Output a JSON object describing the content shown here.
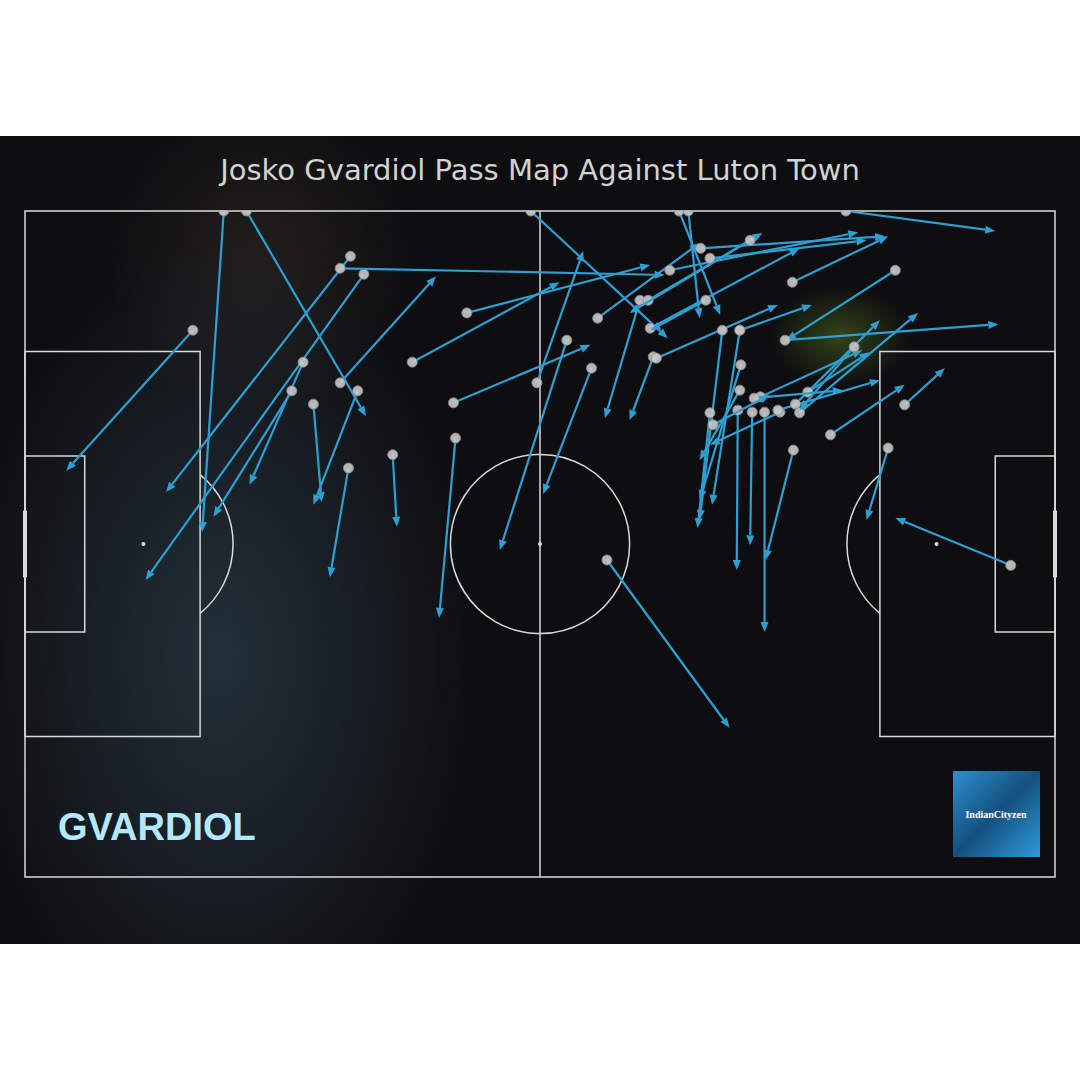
{
  "chart_data": {
    "type": "pass_map",
    "title": "Josko Gvardiol Pass Map Against Luton Town",
    "xlim": [
      0,
      100
    ],
    "ylim": [
      0,
      100
    ],
    "tick_labels": false,
    "grid": false,
    "color": "#2d9fd3",
    "marker": "circle",
    "annotations": [
      {
        "text": "GVARDIOL"
      },
      {
        "text": "IndianCityzen"
      }
    ],
    "passes": [
      {
        "x": 16.3,
        "y": 82.1,
        "end_x": 4.0,
        "end_y": 61.0
      },
      {
        "x": 19.3,
        "y": 100,
        "end_x": 17.2,
        "end_y": 51.8
      },
      {
        "x": 21.5,
        "y": 100,
        "end_x": 33.1,
        "end_y": 69.2
      },
      {
        "x": 31.6,
        "y": 93.2,
        "end_x": 13.7,
        "end_y": 57.8
      },
      {
        "x": 32.9,
        "y": 90.5,
        "end_x": 11.7,
        "end_y": 44.6
      },
      {
        "x": 30.6,
        "y": 91.4,
        "end_x": 62.1,
        "end_y": 90.4
      },
      {
        "x": 27.0,
        "y": 77.3,
        "end_x": 21.8,
        "end_y": 58.9
      },
      {
        "x": 25.9,
        "y": 73.0,
        "end_x": 18.3,
        "end_y": 54.1
      },
      {
        "x": 28.0,
        "y": 71.0,
        "end_x": 28.8,
        "end_y": 56.3
      },
      {
        "x": 30.6,
        "y": 74.2,
        "end_x": 39.9,
        "end_y": 90.2
      },
      {
        "x": 32.3,
        "y": 73.0,
        "end_x": 28.0,
        "end_y": 55.9
      },
      {
        "x": 31.4,
        "y": 61.4,
        "end_x": 29.6,
        "end_y": 45.0
      },
      {
        "x": 35.7,
        "y": 63.4,
        "end_x": 36.1,
        "end_y": 52.6
      },
      {
        "x": 37.6,
        "y": 77.3,
        "end_x": 51.9,
        "end_y": 89.3
      },
      {
        "x": 41.8,
        "y": 65.9,
        "end_x": 40.2,
        "end_y": 38.9
      },
      {
        "x": 41.6,
        "y": 71.2,
        "end_x": 54.9,
        "end_y": 79.9
      },
      {
        "x": 42.9,
        "y": 84.7,
        "end_x": 60.7,
        "end_y": 91.9
      },
      {
        "x": 49.1,
        "y": 100,
        "end_x": 62.4,
        "end_y": 80.9
      },
      {
        "x": 49.7,
        "y": 74.2,
        "end_x": 54.2,
        "end_y": 94.0
      },
      {
        "x": 52.6,
        "y": 80.6,
        "end_x": 46.1,
        "end_y": 49.1
      },
      {
        "x": 55.0,
        "y": 76.4,
        "end_x": 50.3,
        "end_y": 57.5
      },
      {
        "x": 55.6,
        "y": 83.9,
        "end_x": 65.5,
        "end_y": 95.2
      },
      {
        "x": 56.5,
        "y": 47.6,
        "end_x": 68.4,
        "end_y": 22.4
      },
      {
        "x": 59.7,
        "y": 86.6,
        "end_x": 56.3,
        "end_y": 68.9
      },
      {
        "x": 61.0,
        "y": 78.1,
        "end_x": 58.7,
        "end_y": 68.6
      },
      {
        "x": 60.5,
        "y": 86.6,
        "end_x": 71.6,
        "end_y": 96.7
      },
      {
        "x": 61.3,
        "y": 77.9,
        "end_x": 73.1,
        "end_y": 85.9
      },
      {
        "x": 60.7,
        "y": 82.4,
        "end_x": 75.2,
        "end_y": 94.4
      },
      {
        "x": 62.6,
        "y": 91.1,
        "end_x": 80.9,
        "end_y": 96.8
      },
      {
        "x": 63.5,
        "y": 100,
        "end_x": 67.5,
        "end_y": 84.4
      },
      {
        "x": 64.4,
        "y": 100,
        "end_x": 65.5,
        "end_y": 83.9
      },
      {
        "x": 65.6,
        "y": 94.4,
        "end_x": 83.5,
        "end_y": 96.2
      },
      {
        "x": 66.5,
        "y": 92.9,
        "end_x": 81.7,
        "end_y": 95.6
      },
      {
        "x": 70.4,
        "y": 95.6,
        "end_x": 58.7,
        "end_y": 84.7
      },
      {
        "x": 67.7,
        "y": 82.1,
        "end_x": 65.5,
        "end_y": 53.6
      },
      {
        "x": 69.4,
        "y": 82.1,
        "end_x": 66.7,
        "end_y": 55.9
      },
      {
        "x": 69.5,
        "y": 76.9,
        "end_x": 65.5,
        "end_y": 56.6
      },
      {
        "x": 66.5,
        "y": 69.7,
        "end_x": 65.3,
        "end_y": 52.4
      },
      {
        "x": 69.2,
        "y": 70.1,
        "end_x": 69.1,
        "end_y": 46.1
      },
      {
        "x": 70.6,
        "y": 69.8,
        "end_x": 70.4,
        "end_y": 49.8
      },
      {
        "x": 71.8,
        "y": 69.8,
        "end_x": 71.8,
        "end_y": 36.8
      },
      {
        "x": 74.6,
        "y": 64.1,
        "end_x": 71.9,
        "end_y": 47.6
      },
      {
        "x": 73.3,
        "y": 69.8,
        "end_x": 66.5,
        "end_y": 64.9
      },
      {
        "x": 71.4,
        "y": 72.1,
        "end_x": 81.3,
        "end_y": 79.1
      },
      {
        "x": 73.1,
        "y": 70.1,
        "end_x": 83.0,
        "end_y": 74.6
      },
      {
        "x": 74.8,
        "y": 71.0,
        "end_x": 83.0,
        "end_y": 83.6
      },
      {
        "x": 76.0,
        "y": 72.8,
        "end_x": 82.0,
        "end_y": 78.8
      },
      {
        "x": 75.2,
        "y": 69.7,
        "end_x": 86.7,
        "end_y": 84.7
      },
      {
        "x": 78.2,
        "y": 66.4,
        "end_x": 85.4,
        "end_y": 73.9
      },
      {
        "x": 80.5,
        "y": 79.6,
        "end_x": 75.2,
        "end_y": 70.1
      },
      {
        "x": 85.4,
        "y": 70.9,
        "end_x": 89.3,
        "end_y": 76.4
      },
      {
        "x": 83.8,
        "y": 64.4,
        "end_x": 81.7,
        "end_y": 53.6
      },
      {
        "x": 95.7,
        "y": 46.8,
        "end_x": 84.5,
        "end_y": 53.9
      },
      {
        "x": 79.7,
        "y": 100,
        "end_x": 94.2,
        "end_y": 97.0
      },
      {
        "x": 84.5,
        "y": 91.1,
        "end_x": 73.9,
        "end_y": 80.6
      },
      {
        "x": 73.8,
        "y": 80.6,
        "end_x": 94.5,
        "end_y": 83.0
      },
      {
        "x": 69.4,
        "y": 82.1,
        "end_x": 76.4,
        "end_y": 85.9
      },
      {
        "x": 70.8,
        "y": 71.9,
        "end_x": 79.4,
        "end_y": 73.1
      },
      {
        "x": 74.5,
        "y": 89.3,
        "end_x": 83.8,
        "end_y": 96.2
      },
      {
        "x": 66.1,
        "y": 86.6,
        "end_x": 60.7,
        "end_y": 82.1
      },
      {
        "x": 66.8,
        "y": 67.9,
        "end_x": 72.3,
        "end_y": 72.4
      },
      {
        "x": 69.4,
        "y": 73.1,
        "end_x": 65.5,
        "end_y": 62.6
      }
    ]
  }
}
